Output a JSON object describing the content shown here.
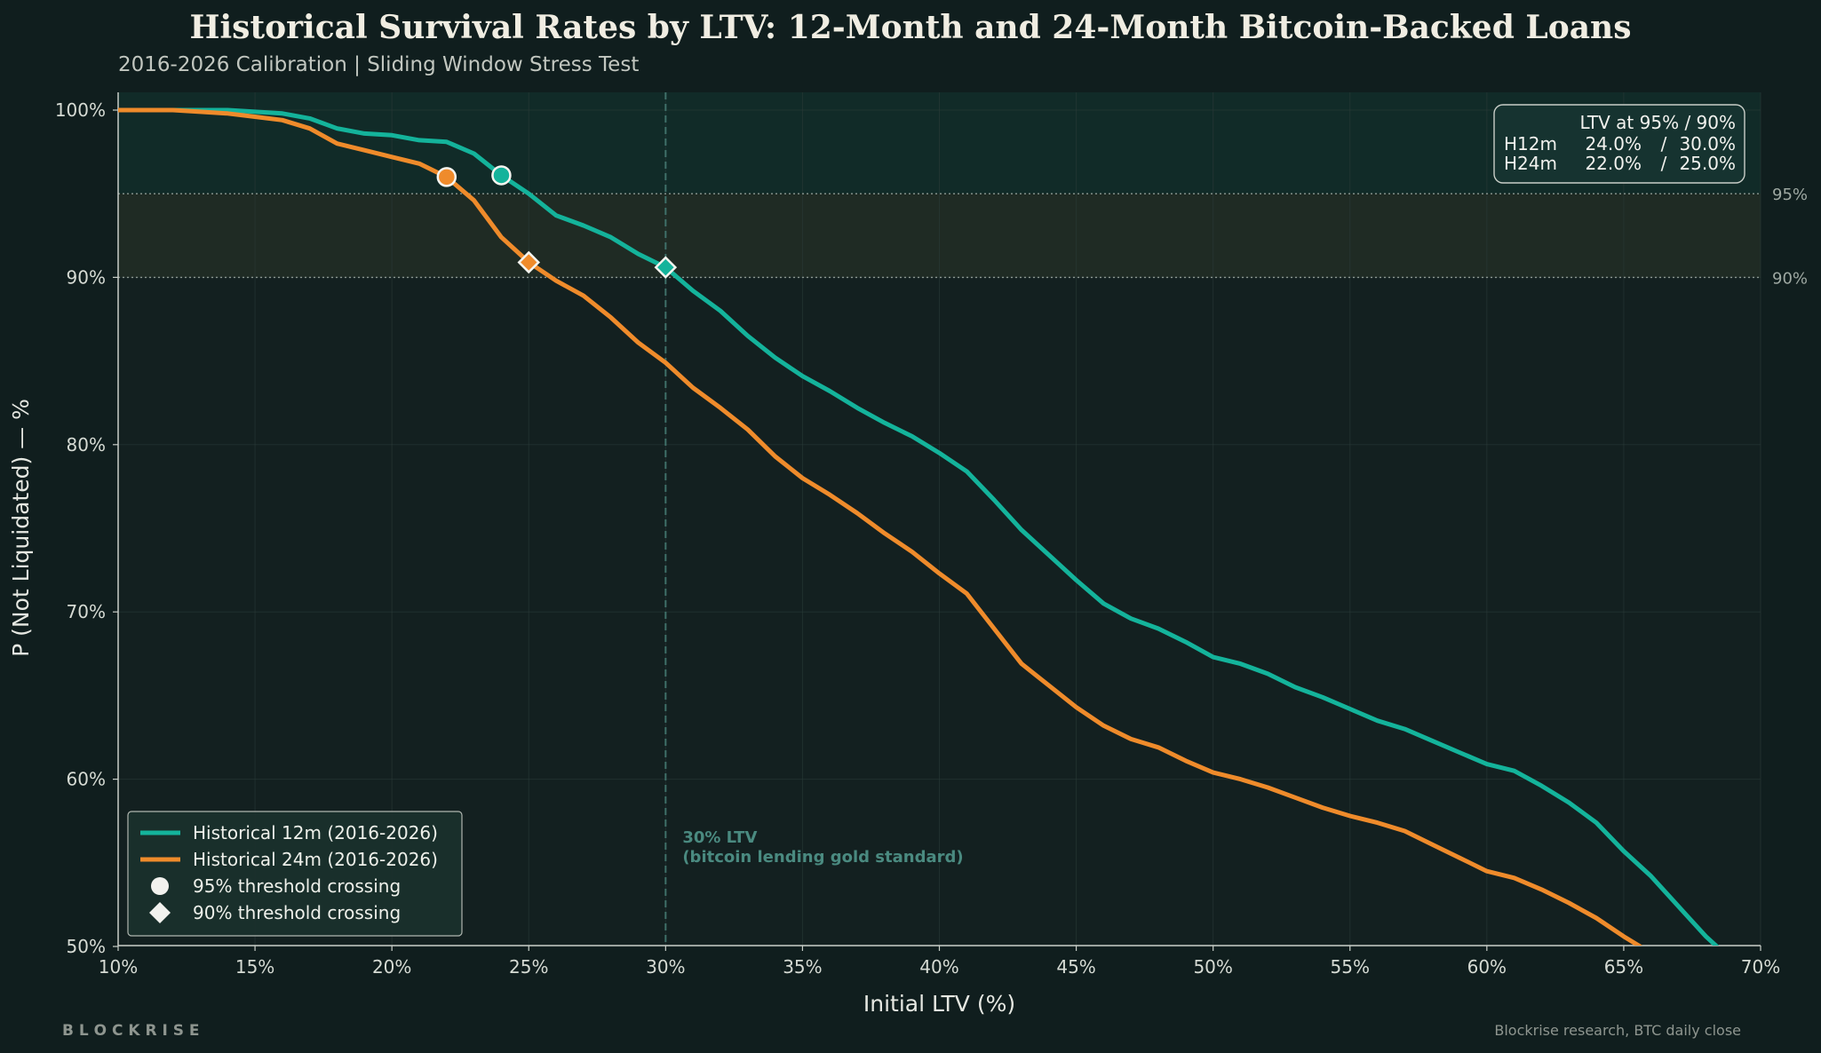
{
  "title": "Historical Survival Rates by LTV: 12-Month and 24-Month Bitcoin-Backed Loans",
  "subtitle": "2016-2026 Calibration  |  Sliding Window Stress Test",
  "brand": "B L O C K R I S E",
  "source": "Blockrise research, BTC daily close",
  "colors": {
    "background": "#101e1e",
    "plot": "#132020",
    "h12": "#14b39b",
    "h24": "#ef8b2b",
    "safe_band": "#112b28",
    "caution_band": "#1f2b24",
    "annotation": "#4a8a80"
  },
  "chart_data": {
    "type": "line",
    "xlabel": "Initial LTV (%)",
    "ylabel": "P (Not Liquidated) — %",
    "xlim": [
      10,
      70
    ],
    "ylim": [
      50,
      101
    ],
    "xticks": [
      10,
      15,
      20,
      25,
      30,
      35,
      40,
      45,
      50,
      55,
      60,
      65,
      70
    ],
    "yticks": [
      50,
      60,
      70,
      80,
      90,
      100
    ],
    "x_tick_labels": [
      "10%",
      "15%",
      "20%",
      "25%",
      "30%",
      "35%",
      "40%",
      "45%",
      "50%",
      "55%",
      "60%",
      "65%",
      "70%"
    ],
    "y_tick_labels": [
      "50%",
      "60%",
      "70%",
      "80%",
      "90%",
      "100%"
    ],
    "thresholds": [
      {
        "value": 95,
        "label": "95%"
      },
      {
        "value": 90,
        "label": "90%"
      }
    ],
    "reference_line": {
      "x": 30,
      "label_line1": "30% LTV",
      "label_line2": "(bitcoin lending gold standard)"
    },
    "series": [
      {
        "name": "Historical 12m (2016-2026)",
        "color": "#14b39b",
        "x": [
          10,
          11,
          12,
          13,
          14,
          15,
          16,
          17,
          18,
          19,
          20,
          21,
          22,
          23,
          24,
          25,
          26,
          27,
          28,
          29,
          30,
          31,
          32,
          33,
          34,
          35,
          36,
          37,
          38,
          39,
          40,
          41,
          42,
          43,
          44,
          45,
          46,
          47,
          48,
          49,
          50,
          51,
          52,
          53,
          54,
          55,
          56,
          57,
          58,
          59,
          60,
          61,
          62,
          63,
          64,
          65,
          66,
          67,
          68,
          68.4
        ],
        "values": [
          100,
          100,
          100,
          100,
          100,
          99.9,
          99.8,
          99.5,
          98.9,
          98.6,
          98.5,
          98.2,
          98.1,
          97.4,
          96.1,
          95.0,
          93.7,
          93.1,
          92.4,
          91.4,
          90.6,
          89.2,
          88.0,
          86.5,
          85.2,
          84.1,
          83.2,
          82.2,
          81.3,
          80.5,
          79.5,
          78.4,
          76.7,
          74.9,
          73.4,
          71.9,
          70.5,
          69.6,
          69.0,
          68.2,
          67.3,
          66.9,
          66.3,
          65.5,
          64.9,
          64.2,
          63.5,
          63.0,
          62.3,
          61.6,
          60.9,
          60.5,
          59.6,
          58.6,
          57.4,
          55.7,
          54.2,
          52.4,
          50.6,
          50.0
        ]
      },
      {
        "name": "Historical 24m (2016-2026)",
        "color": "#ef8b2b",
        "x": [
          10,
          11,
          12,
          13,
          14,
          15,
          16,
          17,
          18,
          19,
          20,
          21,
          22,
          23,
          24,
          25,
          26,
          27,
          28,
          29,
          30,
          31,
          32,
          33,
          34,
          35,
          36,
          37,
          38,
          39,
          40,
          41,
          42,
          43,
          44,
          45,
          46,
          47,
          48,
          49,
          50,
          51,
          52,
          53,
          54,
          55,
          56,
          57,
          58,
          59,
          60,
          61,
          62,
          63,
          64,
          65,
          65.6
        ],
        "values": [
          100,
          100,
          100,
          99.9,
          99.8,
          99.6,
          99.4,
          98.9,
          98.0,
          97.6,
          97.2,
          96.8,
          96.0,
          94.6,
          92.4,
          90.9,
          89.8,
          88.9,
          87.6,
          86.1,
          84.9,
          83.4,
          82.2,
          80.9,
          79.3,
          78.0,
          77.0,
          75.9,
          74.7,
          73.6,
          72.3,
          71.1,
          69.0,
          66.9,
          65.6,
          64.3,
          63.2,
          62.4,
          61.9,
          61.1,
          60.4,
          60.0,
          59.5,
          58.9,
          58.3,
          57.8,
          57.4,
          56.9,
          56.1,
          55.3,
          54.5,
          54.1,
          53.4,
          52.6,
          51.7,
          50.6,
          50.0
        ]
      }
    ],
    "markers": [
      {
        "series": "12m",
        "type": "95% threshold crossing",
        "shape": "circle",
        "x": 24,
        "y": 96.1
      },
      {
        "series": "24m",
        "type": "95% threshold crossing",
        "shape": "circle",
        "x": 22,
        "y": 96.0
      },
      {
        "series": "12m",
        "type": "90% threshold crossing",
        "shape": "diamond",
        "x": 30,
        "y": 90.6
      },
      {
        "series": "24m",
        "type": "90% threshold crossing",
        "shape": "diamond",
        "x": 25,
        "y": 90.9
      }
    ],
    "legend": {
      "placement": "bottom-left",
      "items": [
        {
          "label": "Historical 12m (2016-2026)",
          "kind": "line",
          "color": "#14b39b"
        },
        {
          "label": "Historical 24m (2016-2026)",
          "kind": "line",
          "color": "#ef8b2b"
        },
        {
          "label": "95% threshold crossing",
          "kind": "circle",
          "color": "#f2f2ee"
        },
        {
          "label": "90% threshold crossing",
          "kind": "diamond",
          "color": "#f2f2ee"
        }
      ]
    },
    "summary_box": {
      "placement": "top-right",
      "header": "LTV at 95%   /  90%",
      "rows": [
        {
          "label": "H12m",
          "at95": "24.0%",
          "at90": "30.0%"
        },
        {
          "label": "H24m",
          "at95": "22.0%",
          "at90": "25.0%"
        }
      ]
    }
  }
}
